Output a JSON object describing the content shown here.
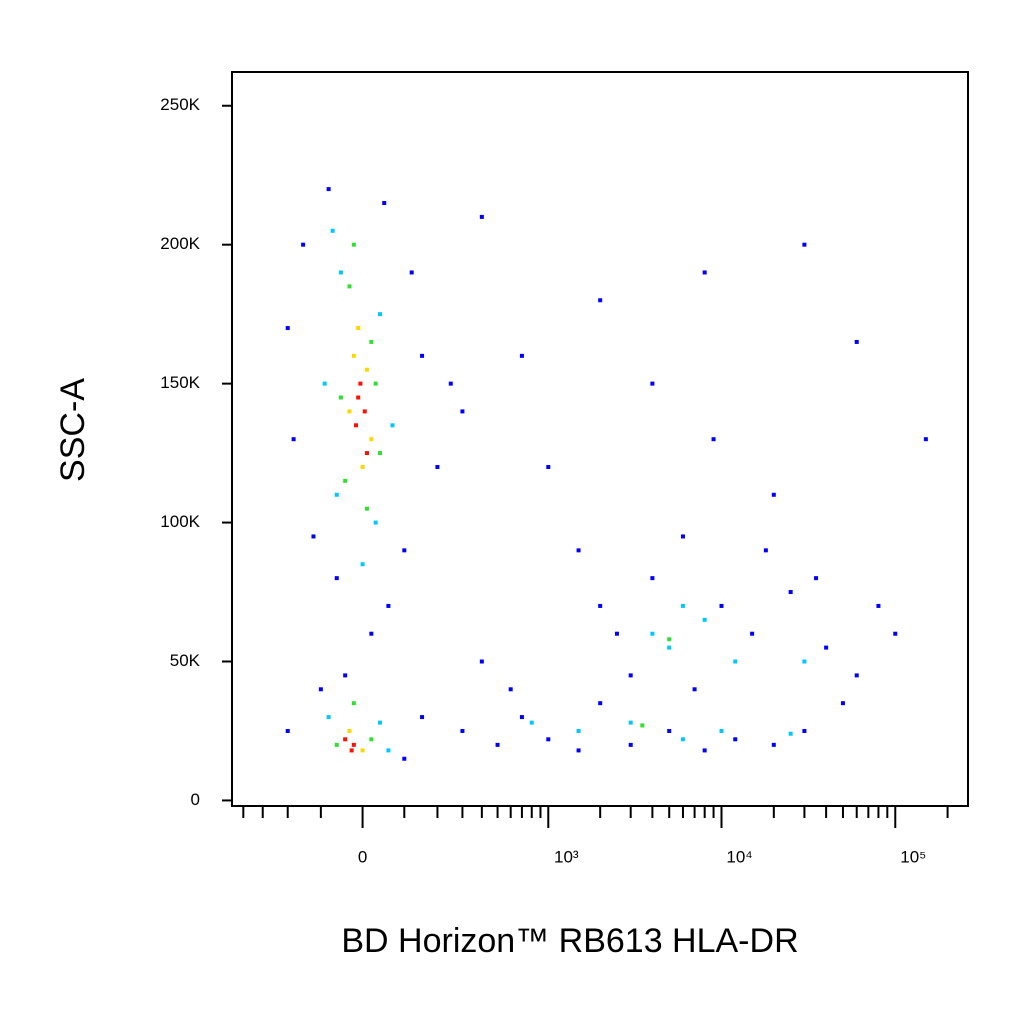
{
  "chart_data": {
    "type": "scatter",
    "x_label": "BD Horizon™ RB613 HLA-DR",
    "y_label": "SSC-A",
    "xscale": "biexponential",
    "xlim": [
      -470,
      262144
    ],
    "ylim": [
      -2000,
      262144
    ],
    "xticks": [
      0,
      {
        "value": 1000,
        "label": "10³"
      },
      {
        "value": 10000,
        "label": "10⁴"
      },
      {
        "value": 100000,
        "label": "10⁵"
      }
    ],
    "xminorticks": [
      -400,
      -300,
      -200,
      -100,
      100,
      200,
      300,
      400,
      500,
      600,
      700,
      800,
      900,
      2000,
      3000,
      4000,
      5000,
      6000,
      7000,
      8000,
      9000,
      20000,
      30000,
      40000,
      50000,
      60000,
      70000,
      80000,
      90000,
      200000
    ],
    "yticks": [
      0,
      {
        "value": 50000,
        "label": "50K"
      },
      {
        "value": 100000,
        "label": "100K"
      },
      {
        "value": 150000,
        "label": "150K"
      },
      {
        "value": 200000,
        "label": "200K"
      },
      {
        "value": 250000,
        "label": "250K"
      }
    ],
    "series": [
      {
        "color": "#0000ff",
        "x": [
          -150,
          -80,
          50,
          120,
          -200,
          150,
          250,
          -180,
          200,
          300,
          -120,
          100,
          -60,
          60,
          20,
          -40,
          -200,
          150,
          100,
          -100,
          300,
          500,
          700,
          1000,
          1500,
          2000,
          3000,
          5000,
          8000,
          12000,
          20000,
          30000,
          600,
          400,
          2500,
          4000,
          6000,
          3000,
          10000,
          15000,
          25000,
          40000,
          60000,
          80000,
          50000,
          7000,
          2000,
          18000,
          100000,
          35000,
          1000,
          2000,
          4000,
          8000,
          20000,
          30000,
          60000,
          150000,
          700,
          400,
          1500,
          9000
        ],
        "y": [
          200000,
          220000,
          215000,
          190000,
          170000,
          160000,
          150000,
          130000,
          120000,
          140000,
          95000,
          90000,
          80000,
          70000,
          60000,
          45000,
          25000,
          30000,
          15000,
          40000,
          25000,
          20000,
          30000,
          22000,
          18000,
          35000,
          20000,
          25000,
          18000,
          22000,
          20000,
          25000,
          40000,
          50000,
          60000,
          80000,
          95000,
          45000,
          70000,
          60000,
          75000,
          55000,
          45000,
          70000,
          35000,
          40000,
          70000,
          90000,
          60000,
          80000,
          120000,
          180000,
          150000,
          190000,
          110000,
          200000,
          165000,
          130000,
          160000,
          210000,
          90000,
          130000
        ]
      },
      {
        "color": "#00c8ff",
        "x": [
          -50,
          40,
          -90,
          70,
          -60,
          30,
          0,
          -70,
          -80,
          40,
          60,
          800,
          1500,
          3000,
          6000,
          10000,
          25000,
          4000,
          5000,
          8000,
          12000,
          30000,
          6000
        ],
        "y": [
          190000,
          175000,
          150000,
          135000,
          110000,
          100000,
          85000,
          205000,
          30000,
          28000,
          18000,
          28000,
          25000,
          28000,
          22000,
          25000,
          24000,
          60000,
          55000,
          65000,
          50000,
          50000,
          70000
        ]
      },
      {
        "color": "#30e030",
        "x": [
          -30,
          20,
          -50,
          40,
          -40,
          10,
          -20,
          30,
          -20,
          20,
          -60,
          5000,
          3500
        ],
        "y": [
          185000,
          165000,
          145000,
          125000,
          115000,
          105000,
          200000,
          150000,
          35000,
          22000,
          20000,
          58000,
          27000
        ]
      },
      {
        "color": "#ffd700",
        "x": [
          -10,
          10,
          -30,
          20,
          0,
          -20,
          -30,
          0
        ],
        "y": [
          170000,
          155000,
          140000,
          130000,
          120000,
          160000,
          25000,
          18000
        ]
      },
      {
        "color": "#ff1000",
        "x": [
          -5,
          5,
          -15,
          10,
          -10,
          -20,
          -40,
          -25
        ],
        "y": [
          150000,
          140000,
          135000,
          125000,
          145000,
          20000,
          22000,
          18000
        ]
      }
    ]
  }
}
